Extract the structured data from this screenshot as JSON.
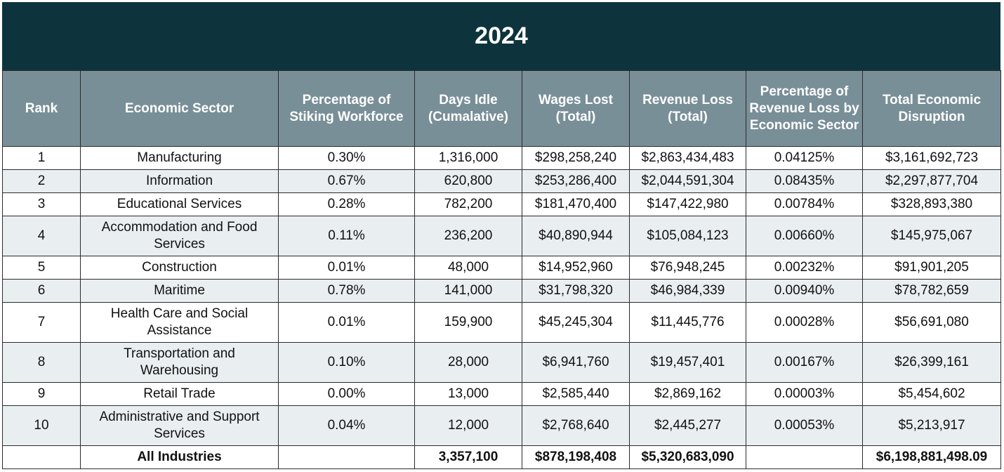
{
  "title": "2024",
  "columns": [
    "Rank",
    "Economic Sector",
    "Percentage of Stiking Workforce",
    "Days Idle (Cumalative)",
    "Wages Lost (Total)",
    "Revenue Loss (Total)",
    "Percentage of Revenue Loss by Economic Sector",
    "Total Economic Disruption"
  ],
  "rows": [
    {
      "rank": "1",
      "sector": "Manufacturing",
      "pct_workforce": "0.30%",
      "days_idle": "1,316,000",
      "wages_lost": "$298,258,240",
      "revenue_loss": "$2,863,434,483",
      "pct_revenue": "0.04125%",
      "total": "$3,161,692,723"
    },
    {
      "rank": "2",
      "sector": "Information",
      "pct_workforce": "0.67%",
      "days_idle": "620,800",
      "wages_lost": "$253,286,400",
      "revenue_loss": "$2,044,591,304",
      "pct_revenue": "0.08435%",
      "total": "$2,297,877,704"
    },
    {
      "rank": "3",
      "sector": "Educational Services",
      "pct_workforce": "0.28%",
      "days_idle": "782,200",
      "wages_lost": "$181,470,400",
      "revenue_loss": "$147,422,980",
      "pct_revenue": "0.00784%",
      "total": "$328,893,380"
    },
    {
      "rank": "4",
      "sector": "Accommodation and Food Services",
      "pct_workforce": "0.11%",
      "days_idle": "236,200",
      "wages_lost": "$40,890,944",
      "revenue_loss": "$105,084,123",
      "pct_revenue": "0.00660%",
      "total": "$145,975,067"
    },
    {
      "rank": "5",
      "sector": "Construction",
      "pct_workforce": "0.01%",
      "days_idle": "48,000",
      "wages_lost": "$14,952,960",
      "revenue_loss": "$76,948,245",
      "pct_revenue": "0.00232%",
      "total": "$91,901,205"
    },
    {
      "rank": "6",
      "sector": "Maritime",
      "pct_workforce": "0.78%",
      "days_idle": "141,000",
      "wages_lost": "$31,798,320",
      "revenue_loss": "$46,984,339",
      "pct_revenue": "0.00940%",
      "total": "$78,782,659"
    },
    {
      "rank": "7",
      "sector": "Health Care and Social Assistance",
      "pct_workforce": "0.01%",
      "days_idle": "159,900",
      "wages_lost": "$45,245,304",
      "revenue_loss": "$11,445,776",
      "pct_revenue": "0.00028%",
      "total": "$56,691,080"
    },
    {
      "rank": "8",
      "sector": "Transportation and Warehousing",
      "pct_workforce": "0.10%",
      "days_idle": "28,000",
      "wages_lost": "$6,941,760",
      "revenue_loss": "$19,457,401",
      "pct_revenue": "0.00167%",
      "total": "$26,399,161"
    },
    {
      "rank": "9",
      "sector": "Retail Trade",
      "pct_workforce": "0.00%",
      "days_idle": "13,000",
      "wages_lost": "$2,585,440",
      "revenue_loss": "$2,869,162",
      "pct_revenue": "0.00003%",
      "total": "$5,454,602"
    },
    {
      "rank": "10",
      "sector": "Administrative and Support Services",
      "pct_workforce": "0.04%",
      "days_idle": "12,000",
      "wages_lost": "$2,768,640",
      "revenue_loss": "$2,445,277",
      "pct_revenue": "0.00053%",
      "total": "$5,213,917"
    }
  ],
  "total_row": {
    "rank": "",
    "sector": "All Industries",
    "pct_workforce": "",
    "days_idle": "3,357,100",
    "wages_lost": "$878,198,408",
    "revenue_loss": "$5,320,683,090",
    "pct_revenue": "",
    "total": "$6,198,881,498.09"
  },
  "colors": {
    "title_bg": "#0d343c",
    "header_bg": "#798f98",
    "alt_row_bg": "#e9eef1"
  }
}
